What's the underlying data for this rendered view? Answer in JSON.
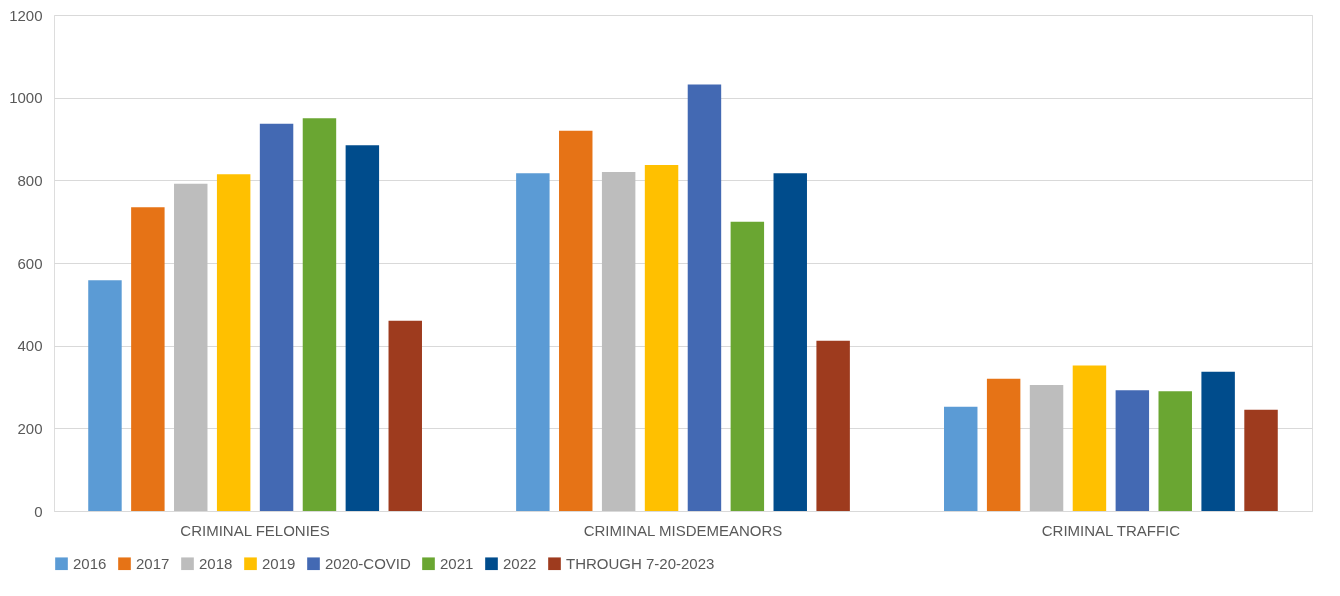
{
  "chart_data": {
    "type": "bar",
    "categories": [
      "CRIMINAL FELONIES",
      "CRIMINAL MISDEMEANORS",
      "CRIMINAL TRAFFIC"
    ],
    "series": [
      {
        "name": "2016",
        "color": "#5b9bd5",
        "values": [
          558,
          817,
          252
        ]
      },
      {
        "name": "2017",
        "color": "#e67316",
        "values": [
          735,
          920,
          320
        ]
      },
      {
        "name": "2018",
        "color": "#bdbdbd",
        "values": [
          792,
          820,
          305
        ]
      },
      {
        "name": "2019",
        "color": "#ffc000",
        "values": [
          815,
          837,
          352
        ]
      },
      {
        "name": "2020-COVID",
        "color": "#4369b3",
        "values": [
          937,
          1032,
          292
        ]
      },
      {
        "name": "2021",
        "color": "#6aa632",
        "values": [
          950,
          700,
          290
        ]
      },
      {
        "name": "2022",
        "color": "#004c8c",
        "values": [
          885,
          817,
          337
        ]
      },
      {
        "name": "THROUGH 7-20-2023",
        "color": "#9e3b1e",
        "values": [
          460,
          412,
          245
        ]
      }
    ],
    "ylim": [
      0,
      1200
    ],
    "yticks": [
      0,
      200,
      400,
      600,
      800,
      1000,
      1200
    ],
    "grid": "y",
    "legend": "bottom"
  }
}
